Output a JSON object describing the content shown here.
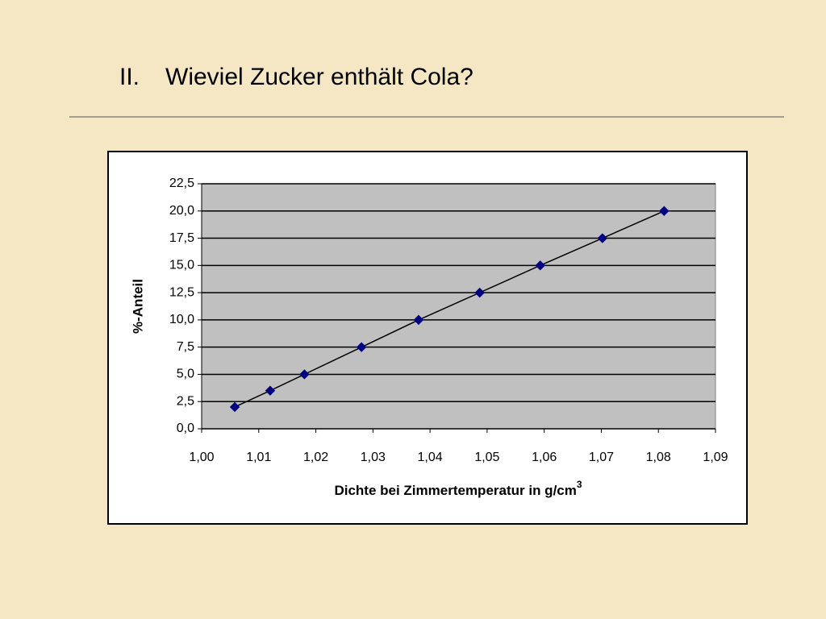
{
  "slide": {
    "number": "II.",
    "title": "Wieviel Zucker enthält Cola?"
  },
  "chart_data": {
    "type": "scatter",
    "xlabel": "Dichte bei Zimmertemperatur in g/cm",
    "xlabel_superscript": "3",
    "ylabel": "%-Anteil",
    "x": [
      1.0058,
      1.012,
      1.018,
      1.028,
      1.038,
      1.0487,
      1.0593,
      1.0702,
      1.081
    ],
    "values": [
      2,
      3.5,
      5,
      7.5,
      10,
      12.5,
      15,
      17.5,
      20
    ],
    "color": "#000080",
    "line_color": "#000000",
    "line": true,
    "xlim": [
      1.0,
      1.09
    ],
    "xticks": [
      {
        "value": 1.0,
        "label": "1,00"
      },
      {
        "value": 1.01,
        "label": "1,01"
      },
      {
        "value": 1.02,
        "label": "1,02"
      },
      {
        "value": 1.03,
        "label": "1,03"
      },
      {
        "value": 1.04,
        "label": "1,04"
      },
      {
        "value": 1.05,
        "label": "1,05"
      },
      {
        "value": 1.06,
        "label": "1,06"
      },
      {
        "value": 1.07,
        "label": "1,07"
      },
      {
        "value": 1.08,
        "label": "1,08"
      },
      {
        "value": 1.09,
        "label": "1,09"
      }
    ],
    "ylim": [
      0,
      22.5
    ],
    "yticks": [
      {
        "value": 0,
        "label": "0,0"
      },
      {
        "value": 2.5,
        "label": "2,5"
      },
      {
        "value": 5,
        "label": "5,0"
      },
      {
        "value": 7.5,
        "label": "7,5"
      },
      {
        "value": 10,
        "label": "10,0"
      },
      {
        "value": 12.5,
        "label": "12,5"
      },
      {
        "value": 15,
        "label": "15,0"
      },
      {
        "value": 17.5,
        "label": "17,5"
      },
      {
        "value": 20,
        "label": "20,0"
      },
      {
        "value": 22.5,
        "label": "22,5"
      }
    ],
    "grid": true,
    "plot_background": "#c0c0c0"
  }
}
